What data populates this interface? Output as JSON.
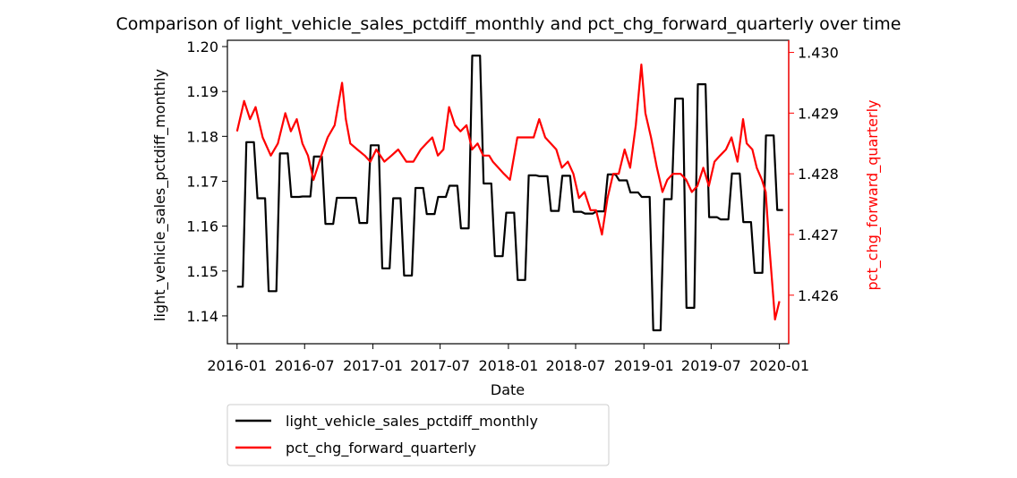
{
  "chart_data": {
    "type": "line",
    "title": "Comparison of light_vehicle_sales_pctdiff_monthly and pct_chg_forward_quarterly over time",
    "xlabel": "Date",
    "x_ticks": [
      "2016-01",
      "2016-07",
      "2017-01",
      "2017-07",
      "2018-01",
      "2018-07",
      "2019-01",
      "2019-07",
      "2020-01"
    ],
    "axes": {
      "left": {
        "label": "light_vehicle_sales_pctdiff_monthly",
        "ylim": [
          1.1338,
          1.2014
        ],
        "ticks": [
          "1.14",
          "1.15",
          "1.16",
          "1.17",
          "1.18",
          "1.19",
          "1.20"
        ],
        "color": "#000000"
      },
      "right": {
        "label": "pct_chg_forward_quarterly",
        "ylim": [
          1.4252,
          1.4302
        ],
        "ticks": [
          "1.426",
          "1.427",
          "1.428",
          "1.429",
          "1.430"
        ],
        "color": "#ff0000"
      }
    },
    "legend": {
      "placement": "below-left",
      "entries": [
        "light_vehicle_sales_pctdiff_monthly",
        "pct_chg_forward_quarterly"
      ]
    },
    "grid": false,
    "series": [
      {
        "name": "light_vehicle_sales_pctdiff_monthly",
        "axis": "left",
        "color": "#000000",
        "style": "step-monthly",
        "x": [
          "2016-01",
          "2016-02",
          "2016-03",
          "2016-04",
          "2016-05",
          "2016-06",
          "2016-07",
          "2016-08",
          "2016-09",
          "2016-10",
          "2016-11",
          "2016-12",
          "2017-01",
          "2017-02",
          "2017-03",
          "2017-04",
          "2017-05",
          "2017-06",
          "2017-07",
          "2017-08",
          "2017-09",
          "2017-10",
          "2017-11",
          "2017-12",
          "2018-01",
          "2018-02",
          "2018-03",
          "2018-04",
          "2018-05",
          "2018-06",
          "2018-07",
          "2018-08",
          "2018-09",
          "2018-10",
          "2018-11",
          "2018-12",
          "2019-01",
          "2019-02",
          "2019-03",
          "2019-04",
          "2019-05",
          "2019-06",
          "2019-07",
          "2019-08",
          "2019-09",
          "2019-10",
          "2019-11",
          "2019-12",
          "2020-01"
        ],
        "values": [
          1.1465,
          1.1787,
          1.1662,
          1.1455,
          1.1762,
          1.1665,
          1.1666,
          1.1755,
          1.1605,
          1.1663,
          1.1663,
          1.1607,
          1.178,
          1.1506,
          1.1662,
          1.149,
          1.1685,
          1.1627,
          1.1665,
          1.169,
          1.1595,
          1.198,
          1.1695,
          1.1533,
          1.163,
          1.148,
          1.1713,
          1.1711,
          1.1634,
          1.1712,
          1.1632,
          1.1628,
          1.1633,
          1.1715,
          1.1702,
          1.1675,
          1.1665,
          1.1368,
          1.166,
          1.1884,
          1.1418,
          1.1916,
          1.162,
          1.1615,
          1.1717,
          1.1609,
          1.1496,
          1.1802,
          1.1636
        ]
      },
      {
        "name": "pct_chg_forward_quarterly",
        "axis": "right",
        "color": "#ff0000",
        "style": "line",
        "x": [
          "2016-01-01",
          "2016-01-20",
          "2016-02-05",
          "2016-02-20",
          "2016-03-10",
          "2016-04-01",
          "2016-04-20",
          "2016-05-10",
          "2016-05-25",
          "2016-06-10",
          "2016-06-25",
          "2016-07-10",
          "2016-07-25",
          "2016-08-15",
          "2016-09-01",
          "2016-09-20",
          "2016-10-10",
          "2016-10-20",
          "2016-11-01",
          "2016-11-20",
          "2016-12-10",
          "2016-12-25",
          "2017-01-10",
          "2017-02-01",
          "2017-02-20",
          "2017-03-10",
          "2017-04-01",
          "2017-04-20",
          "2017-05-10",
          "2017-05-25",
          "2017-06-10",
          "2017-06-25",
          "2017-07-10",
          "2017-07-25",
          "2017-08-10",
          "2017-08-25",
          "2017-09-10",
          "2017-09-25",
          "2017-10-10",
          "2017-10-25",
          "2017-11-10",
          "2017-11-20",
          "2017-12-05",
          "2017-12-20",
          "2018-01-05",
          "2018-01-25",
          "2018-02-10",
          "2018-02-25",
          "2018-03-10",
          "2018-03-25",
          "2018-04-10",
          "2018-04-25",
          "2018-05-10",
          "2018-05-25",
          "2018-06-10",
          "2018-06-25",
          "2018-07-10",
          "2018-07-25",
          "2018-08-10",
          "2018-08-25",
          "2018-09-10",
          "2018-09-25",
          "2018-10-10",
          "2018-10-25",
          "2018-11-10",
          "2018-11-25",
          "2018-12-10",
          "2018-12-25",
          "2019-01-05",
          "2019-01-20",
          "2019-02-05",
          "2019-02-20",
          "2019-03-05",
          "2019-03-20",
          "2019-04-10",
          "2019-04-25",
          "2019-05-10",
          "2019-05-25",
          "2019-06-10",
          "2019-06-25",
          "2019-07-10",
          "2019-07-25",
          "2019-08-10",
          "2019-08-25",
          "2019-09-10",
          "2019-09-25",
          "2019-10-05",
          "2019-10-20",
          "2019-11-01",
          "2019-11-15",
          "2019-11-25",
          "2019-12-05",
          "2019-12-20",
          "2020-01-01"
        ],
        "values": [
          1.4287,
          1.4292,
          1.4289,
          1.4291,
          1.4286,
          1.4283,
          1.4285,
          1.429,
          1.4287,
          1.4289,
          1.4285,
          1.4283,
          1.4279,
          1.4283,
          1.4286,
          1.4288,
          1.4295,
          1.4289,
          1.4285,
          1.4284,
          1.4283,
          1.4282,
          1.4284,
          1.4282,
          1.4283,
          1.4284,
          1.4282,
          1.4282,
          1.4284,
          1.4285,
          1.4286,
          1.4283,
          1.4284,
          1.4291,
          1.4288,
          1.4287,
          1.4288,
          1.4284,
          1.4285,
          1.4283,
          1.4283,
          1.4282,
          1.4281,
          1.428,
          1.4279,
          1.4286,
          1.4286,
          1.4286,
          1.4286,
          1.4289,
          1.4286,
          1.4285,
          1.4284,
          1.4281,
          1.4282,
          1.428,
          1.4276,
          1.4277,
          1.4274,
          1.4274,
          1.427,
          1.4276,
          1.428,
          1.428,
          1.4284,
          1.4281,
          1.4288,
          1.4298,
          1.429,
          1.4286,
          1.4281,
          1.4277,
          1.4279,
          1.428,
          1.428,
          1.4279,
          1.4277,
          1.4278,
          1.4281,
          1.4278,
          1.4282,
          1.4283,
          1.4284,
          1.4286,
          1.4282,
          1.4289,
          1.4285,
          1.4284,
          1.4281,
          1.4279,
          1.4277,
          1.4268,
          1.4256,
          1.4259
        ]
      }
    ]
  }
}
